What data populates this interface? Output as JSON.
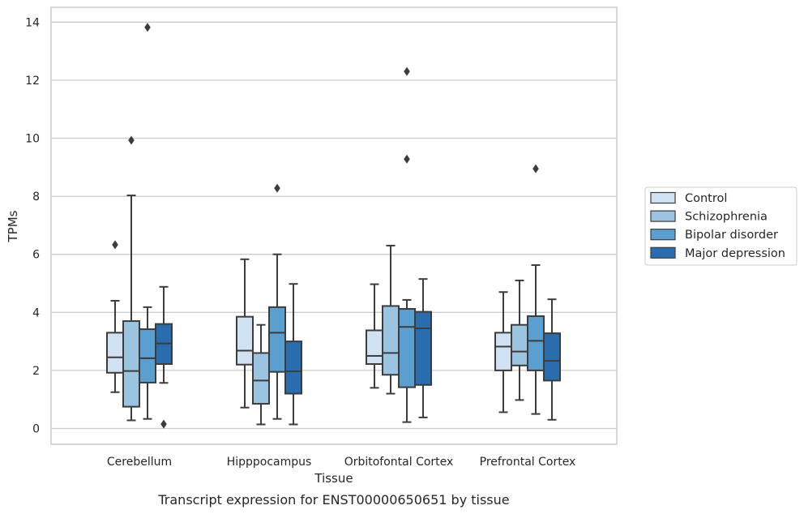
{
  "chart_data": {
    "type": "box",
    "caption": "Transcript expression for ENST00000650651 by tissue",
    "xlabel": "Tissue",
    "ylabel": "TPMs",
    "ylim": [
      -0.55,
      14.5
    ],
    "yticks": [
      0,
      2,
      4,
      6,
      8,
      10,
      12,
      14
    ],
    "ytick_labels": [
      "0",
      "2",
      "4",
      "6",
      "8",
      "10",
      "12",
      "14"
    ],
    "grid": "horizontal",
    "legend_position": "right",
    "categories": [
      "Cerebellum",
      "Hipppocampus",
      "Orbitofontal Cortex",
      "Prefrontal Cortex"
    ],
    "series": [
      {
        "name": "Control",
        "color": "#d0e1f2",
        "boxes": [
          {
            "whislo": 1.25,
            "q1": 1.92,
            "med": 2.45,
            "q3": 3.3,
            "whishi": 4.4,
            "fliers": [
              6.33
            ]
          },
          {
            "whislo": 0.72,
            "q1": 2.2,
            "med": 2.68,
            "q3": 3.85,
            "whishi": 5.83,
            "fliers": []
          },
          {
            "whislo": 1.4,
            "q1": 2.22,
            "med": 2.5,
            "q3": 3.38,
            "whishi": 4.97,
            "fliers": []
          },
          {
            "whislo": 0.56,
            "q1": 2.0,
            "med": 2.82,
            "q3": 3.3,
            "whishi": 4.7,
            "fliers": []
          }
        ]
      },
      {
        "name": "Schizophrenia",
        "color": "#9ac4e0",
        "boxes": [
          {
            "whislo": 0.28,
            "q1": 0.75,
            "med": 1.98,
            "q3": 3.7,
            "whishi": 8.03,
            "fliers": [
              9.93
            ]
          },
          {
            "whislo": 0.14,
            "q1": 0.85,
            "med": 1.65,
            "q3": 2.6,
            "whishi": 3.57,
            "fliers": []
          },
          {
            "whislo": 1.2,
            "q1": 1.85,
            "med": 2.6,
            "q3": 4.22,
            "whishi": 6.3,
            "fliers": []
          },
          {
            "whislo": 0.98,
            "q1": 2.17,
            "med": 2.65,
            "q3": 3.57,
            "whishi": 5.1,
            "fliers": []
          }
        ]
      },
      {
        "name": "Bipolar disorder",
        "color": "#5a9fcf",
        "boxes": [
          {
            "whislo": 0.33,
            "q1": 1.58,
            "med": 2.42,
            "q3": 3.42,
            "whishi": 4.18,
            "fliers": [
              13.82
            ]
          },
          {
            "whislo": 0.33,
            "q1": 1.95,
            "med": 3.3,
            "q3": 4.18,
            "whishi": 6.0,
            "fliers": [
              8.28
            ]
          },
          {
            "whislo": 0.22,
            "q1": 1.42,
            "med": 3.5,
            "q3": 4.12,
            "whishi": 4.43,
            "fliers": [
              9.28,
              12.3
            ]
          },
          {
            "whislo": 0.5,
            "q1": 2.0,
            "med": 3.02,
            "q3": 3.87,
            "whishi": 5.63,
            "fliers": [
              8.95
            ]
          }
        ]
      },
      {
        "name": "Major depression",
        "color": "#2a6daf",
        "boxes": [
          {
            "whislo": 1.57,
            "q1": 2.22,
            "med": 2.93,
            "q3": 3.6,
            "whishi": 4.88,
            "fliers": [
              0.15
            ]
          },
          {
            "whislo": 0.14,
            "q1": 1.2,
            "med": 1.97,
            "q3": 3.0,
            "whishi": 4.98,
            "fliers": []
          },
          {
            "whislo": 0.38,
            "q1": 1.5,
            "med": 3.45,
            "q3": 4.02,
            "whishi": 5.15,
            "fliers": []
          },
          {
            "whislo": 0.3,
            "q1": 1.65,
            "med": 2.33,
            "q3": 3.28,
            "whishi": 4.45,
            "fliers": []
          }
        ]
      }
    ]
  }
}
